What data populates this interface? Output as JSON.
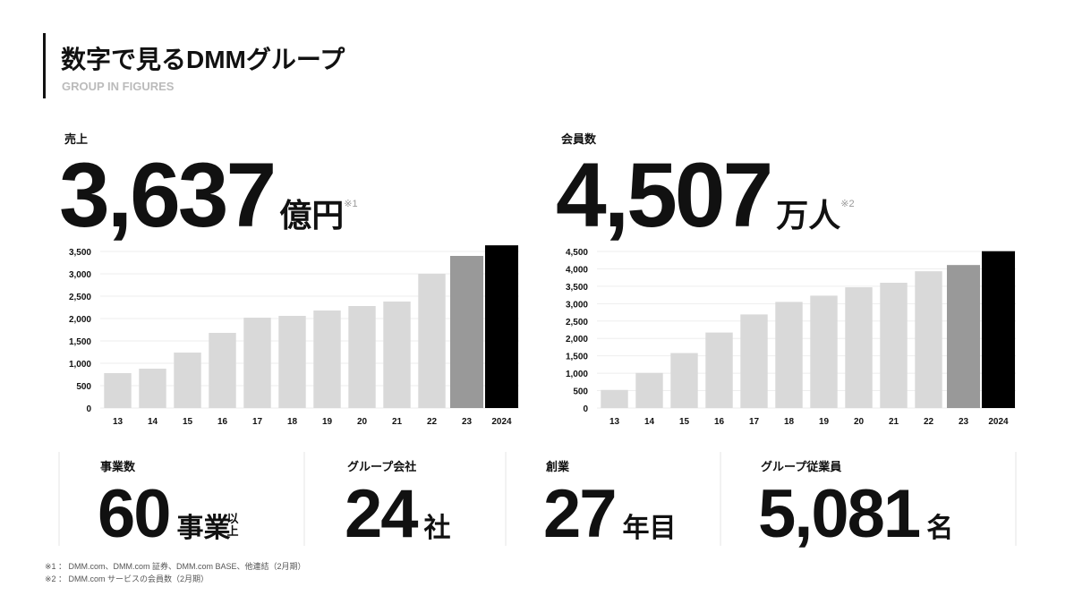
{
  "header": {
    "title": "数字で見るDMMグループ",
    "subtitle": "GROUP IN FIGURES"
  },
  "chart_data": [
    {
      "type": "bar",
      "title": "売上",
      "headline": "3,637",
      "unit": "億円",
      "note": "※1",
      "categories": [
        "13",
        "14",
        "15",
        "16",
        "17",
        "18",
        "19",
        "20",
        "21",
        "22",
        "23",
        "2024"
      ],
      "values": [
        780,
        880,
        1240,
        1680,
        2020,
        2060,
        2180,
        2280,
        2380,
        3000,
        3400,
        3637
      ],
      "colors": [
        "#d9d9d9",
        "#d9d9d9",
        "#d9d9d9",
        "#d9d9d9",
        "#d9d9d9",
        "#d9d9d9",
        "#d9d9d9",
        "#d9d9d9",
        "#d9d9d9",
        "#d9d9d9",
        "#999999",
        "#000000"
      ],
      "ylim": [
        0,
        3500
      ],
      "yticks": [
        0,
        500,
        {
          "value": 1000,
          "label": "1,000"
        },
        {
          "value": 1500,
          "label": "1,500"
        },
        {
          "value": 2000,
          "label": "2,000"
        },
        {
          "value": 2500,
          "label": "2,500"
        },
        {
          "value": 3000,
          "label": "3,000"
        },
        {
          "value": 3500,
          "label": "3,500"
        }
      ],
      "grid": true
    },
    {
      "type": "bar",
      "title": "会員数",
      "headline": "4,507",
      "unit": "万人",
      "note": "※2",
      "categories": [
        "13",
        "14",
        "15",
        "16",
        "17",
        "18",
        "19",
        "20",
        "21",
        "22",
        "23",
        "2024"
      ],
      "values": [
        520,
        1010,
        1580,
        2170,
        2690,
        3050,
        3230,
        3470,
        3600,
        3930,
        4110,
        4507
      ],
      "colors": [
        "#d9d9d9",
        "#d9d9d9",
        "#d9d9d9",
        "#d9d9d9",
        "#d9d9d9",
        "#d9d9d9",
        "#d9d9d9",
        "#d9d9d9",
        "#d9d9d9",
        "#d9d9d9",
        "#999999",
        "#000000"
      ],
      "ylim": [
        0,
        4500
      ],
      "yticks": [
        0,
        500,
        {
          "value": 1000,
          "label": "1,000"
        },
        {
          "value": 1500,
          "label": "1,500"
        },
        {
          "value": 2000,
          "label": "2,000"
        },
        {
          "value": 2500,
          "label": "2,500"
        },
        {
          "value": 3000,
          "label": "3,000"
        },
        {
          "value": 3500,
          "label": "3,500"
        },
        {
          "value": 4000,
          "label": "4,000"
        },
        {
          "value": 4500,
          "label": "4,500"
        }
      ],
      "grid": true
    }
  ],
  "kpis": [
    {
      "label": "事業数",
      "value": "60",
      "unit": "事業",
      "suffix": "以上"
    },
    {
      "label": "グループ会社",
      "value": "24",
      "unit": "社"
    },
    {
      "label": "創業",
      "value": "27",
      "unit": "年目"
    },
    {
      "label": "グループ従業員",
      "value": "5,081",
      "unit": "名"
    }
  ],
  "footnotes": [
    "※1 ： DMM.com、DMM.com 証券、DMM.com BASE、他連結（2月期）",
    "※2 ： DMM.com サービスの会員数（2月期）"
  ]
}
